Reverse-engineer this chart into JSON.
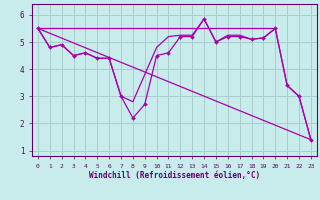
{
  "xlabel": "Windchill (Refroidissement éolien,°C)",
  "xlim": [
    -0.5,
    23.5
  ],
  "ylim": [
    0.8,
    6.4
  ],
  "yticks": [
    1,
    2,
    3,
    4,
    5,
    6
  ],
  "xticks": [
    0,
    1,
    2,
    3,
    4,
    5,
    6,
    7,
    8,
    9,
    10,
    11,
    12,
    13,
    14,
    15,
    16,
    17,
    18,
    19,
    20,
    21,
    22,
    23
  ],
  "background_color": "#c8ecec",
  "line_color": "#aa00aa",
  "grid_color": "#aacccc",
  "lines": [
    {
      "x": [
        0,
        1,
        2,
        3,
        4,
        5,
        6,
        7,
        8,
        9,
        10,
        11,
        12,
        13,
        14,
        15,
        16,
        17,
        18,
        19,
        20,
        21,
        22,
        23
      ],
      "y": [
        5.5,
        4.8,
        4.9,
        4.5,
        4.6,
        4.4,
        4.4,
        3.0,
        2.2,
        2.7,
        4.5,
        4.6,
        5.2,
        5.2,
        5.85,
        5.0,
        5.2,
        5.2,
        5.1,
        5.15,
        5.5,
        3.4,
        3.0,
        1.4
      ]
    },
    {
      "x": [
        0,
        1,
        2,
        3,
        4,
        5,
        6,
        7,
        8,
        9,
        10,
        11,
        12,
        13,
        14,
        15,
        16,
        17,
        18,
        19,
        20,
        21,
        22,
        23
      ],
      "y": [
        5.5,
        4.8,
        4.9,
        4.5,
        4.6,
        4.4,
        4.4,
        3.0,
        2.8,
        3.8,
        4.8,
        5.2,
        5.25,
        5.25,
        5.85,
        5.0,
        5.25,
        5.25,
        5.1,
        5.15,
        5.5,
        3.4,
        3.0,
        1.4
      ]
    },
    {
      "x": [
        0,
        23
      ],
      "y": [
        5.5,
        1.4
      ]
    },
    {
      "x": [
        0,
        20
      ],
      "y": [
        5.5,
        5.5
      ]
    }
  ]
}
